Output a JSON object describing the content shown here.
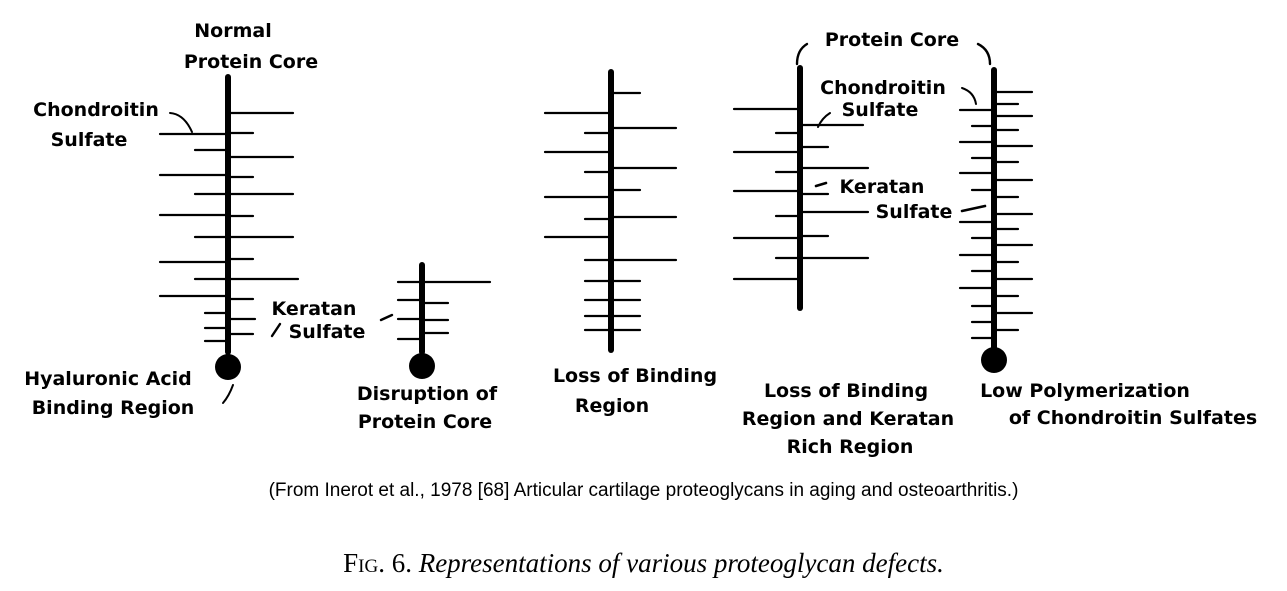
{
  "labels": {
    "normal_line1": "Normal",
    "normal_line2": "Protein Core",
    "chondroitin_line1": "Chondroitin",
    "chondroitin_line2": "Sulfate",
    "keratan_line1": "Keratan",
    "keratan_line2": "Sulfate",
    "hyaluronic_line1": "Hyaluronic Acid",
    "hyaluronic_line2": "Binding Region",
    "disruption_line1": "Disruption of",
    "disruption_line2": "Protein Core",
    "loss_binding_line1": "Loss of Binding",
    "loss_binding_line2": "Region",
    "protein_core_top": "Protein Core",
    "chondroitin_right_line1": "Chondroitin",
    "chondroitin_right_line2": "Sulfate",
    "keratan_right_line1": "Keratan",
    "keratan_right_line2": "Sulfate",
    "loss_keratan_line1": "Loss of Binding",
    "loss_keratan_line2": "Region and Keratan",
    "loss_keratan_line3": "Rich Region",
    "low_poly_line1": "Low Polymerization",
    "low_poly_line2": "of Chondroitin Sulfates"
  },
  "source": "(From Inerot et al., 1978 [68] Articular cartilage proteoglycans in aging and osteoarthritis.)",
  "caption": {
    "fig_number": "Fig. 6.",
    "text": "Representations of various proteoglycan defects."
  },
  "colors": {
    "ink": "#000000",
    "background": "#ffffff"
  }
}
